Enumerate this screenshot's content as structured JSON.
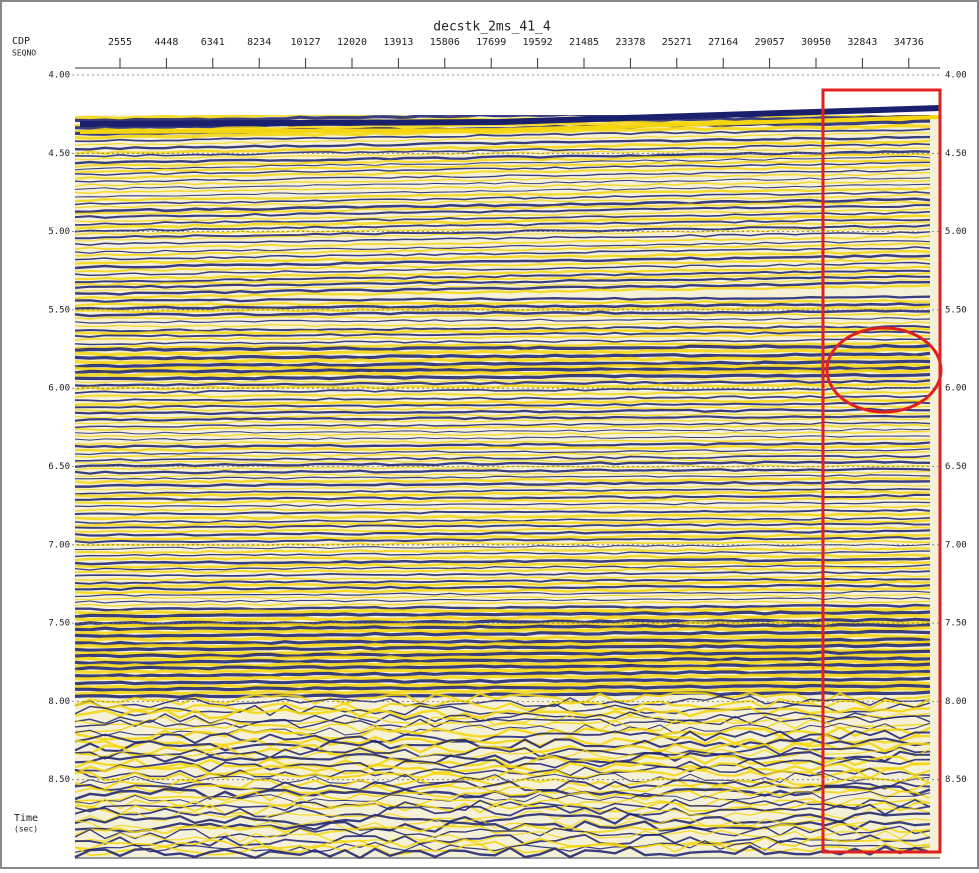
{
  "title": "decstk_2ms_41_4",
  "x_axis": {
    "label": "CDP",
    "sublabel": "SEQNO",
    "ticks": [
      "2555",
      "4448",
      "6341",
      "8234",
      "10127",
      "12020",
      "13913",
      "15806",
      "17699",
      "19592",
      "21485",
      "23378",
      "25271",
      "27164",
      "29057",
      "30950",
      "32843",
      "34736"
    ]
  },
  "y_axis": {
    "label": "Time",
    "unit": "(sec)",
    "ticks": [
      "4.00",
      "4.50",
      "5.00",
      "5.50",
      "6.00",
      "6.50",
      "7.00",
      "7.50",
      "8.00",
      "8.50"
    ]
  }
}
